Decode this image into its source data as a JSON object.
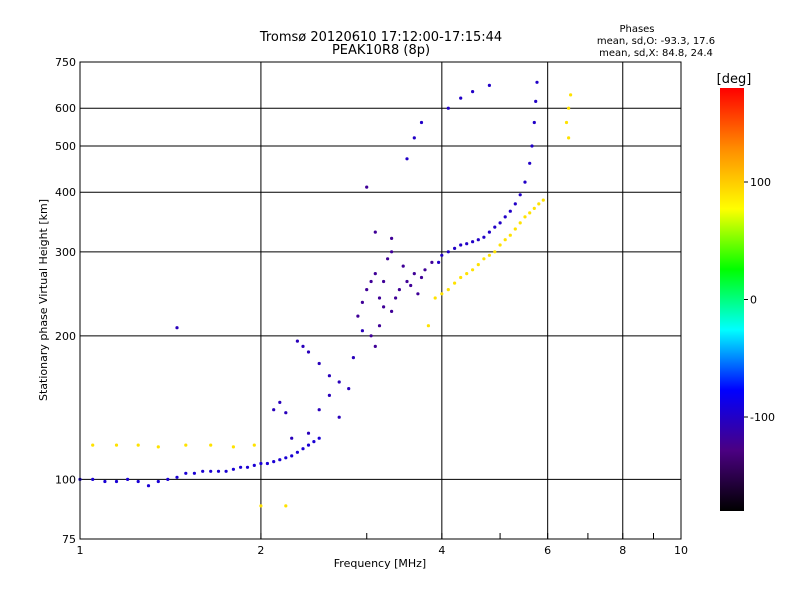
{
  "chart_data": {
    "type": "scatter",
    "title": "Tromsø 20120610 17:12:00-17:15:44",
    "subtitle": "PEAK10R8 (8p)",
    "xlabel": "Frequency [MHz]",
    "ylabel": "Stationary phase Virtual Height [km]",
    "x_scale": "log",
    "y_scale": "log",
    "xlim": [
      1,
      10
    ],
    "ylim": [
      75,
      750
    ],
    "x_ticks": [
      1,
      2,
      4,
      6,
      8,
      10
    ],
    "y_ticks": [
      75,
      100,
      200,
      300,
      400,
      500,
      600,
      750
    ],
    "grid": true,
    "phases": {
      "title": "Phases",
      "o_label": "mean, sd,O: -93.3, 17.6",
      "x_label": "mean, sd,X:  84.8, 24.4"
    },
    "colorbar": {
      "label": "[deg]",
      "min": -180,
      "max": 180,
      "ticks": [
        100,
        0,
        -100
      ],
      "colors": [
        "#000000",
        "#4b0082",
        "#0000ff",
        "#00ffff",
        "#00ff00",
        "#ffff00",
        "#ff8c00",
        "#ff0000"
      ]
    },
    "series": [
      {
        "key": "o_low",
        "phase": -95,
        "points": [
          [
            1.0,
            100
          ],
          [
            1.05,
            100
          ],
          [
            1.1,
            99
          ],
          [
            1.15,
            99
          ],
          [
            1.2,
            100
          ],
          [
            1.25,
            99
          ],
          [
            1.3,
            97
          ],
          [
            1.35,
            99
          ],
          [
            1.4,
            100
          ],
          [
            1.45,
            101
          ],
          [
            1.5,
            103
          ],
          [
            1.55,
            103
          ],
          [
            1.6,
            104
          ],
          [
            1.65,
            104
          ],
          [
            1.7,
            104
          ],
          [
            1.75,
            104
          ],
          [
            1.8,
            105
          ],
          [
            1.85,
            106
          ],
          [
            1.9,
            106
          ],
          [
            1.95,
            107
          ],
          [
            2.0,
            108
          ],
          [
            2.05,
            108
          ],
          [
            2.1,
            109
          ],
          [
            2.15,
            110
          ],
          [
            2.2,
            111
          ],
          [
            2.25,
            112
          ],
          [
            2.3,
            114
          ],
          [
            2.35,
            116
          ],
          [
            2.4,
            118
          ],
          [
            2.45,
            120
          ],
          [
            2.5,
            122
          ]
        ]
      },
      {
        "key": "o_mid",
        "phase": -105,
        "points": [
          [
            2.3,
            195
          ],
          [
            2.35,
            190
          ],
          [
            2.4,
            185
          ],
          [
            2.5,
            175
          ],
          [
            2.6,
            165
          ],
          [
            2.7,
            160
          ],
          [
            2.8,
            155
          ],
          [
            2.1,
            140
          ],
          [
            2.15,
            145
          ],
          [
            2.2,
            138
          ],
          [
            2.5,
            140
          ],
          [
            2.6,
            150
          ],
          [
            2.7,
            135
          ],
          [
            2.85,
            180
          ],
          [
            2.95,
            205
          ],
          [
            2.4,
            125
          ],
          [
            2.25,
            122
          ],
          [
            1.45,
            208
          ]
        ]
      },
      {
        "key": "o_f1",
        "phase": -120,
        "points": [
          [
            2.9,
            220
          ],
          [
            2.95,
            235
          ],
          [
            3.0,
            250
          ],
          [
            3.05,
            260
          ],
          [
            3.1,
            270
          ],
          [
            3.15,
            240
          ],
          [
            3.2,
            230
          ],
          [
            3.3,
            225
          ],
          [
            3.4,
            250
          ],
          [
            3.5,
            260
          ],
          [
            3.6,
            270
          ],
          [
            3.7,
            265
          ],
          [
            3.05,
            200
          ],
          [
            3.1,
            190
          ],
          [
            3.15,
            210
          ],
          [
            3.2,
            260
          ],
          [
            3.25,
            290
          ],
          [
            3.3,
            300
          ],
          [
            3.35,
            240
          ],
          [
            3.45,
            280
          ],
          [
            3.55,
            255
          ],
          [
            3.65,
            245
          ],
          [
            3.75,
            275
          ],
          [
            3.85,
            285
          ],
          [
            3.0,
            410
          ],
          [
            3.1,
            330
          ],
          [
            3.3,
            320
          ]
        ]
      },
      {
        "key": "o_f2",
        "phase": -100,
        "points": [
          [
            3.95,
            285
          ],
          [
            4.0,
            295
          ],
          [
            4.1,
            300
          ],
          [
            4.2,
            305
          ],
          [
            4.3,
            310
          ],
          [
            4.4,
            312
          ],
          [
            4.5,
            315
          ],
          [
            4.6,
            318
          ],
          [
            4.7,
            322
          ],
          [
            4.8,
            330
          ],
          [
            4.9,
            338
          ],
          [
            5.0,
            345
          ],
          [
            5.1,
            355
          ],
          [
            5.2,
            365
          ],
          [
            5.3,
            378
          ],
          [
            5.4,
            395
          ],
          [
            5.5,
            420
          ],
          [
            5.6,
            460
          ],
          [
            5.65,
            500
          ],
          [
            5.7,
            560
          ],
          [
            5.73,
            620
          ],
          [
            5.76,
            680
          ],
          [
            3.5,
            470
          ],
          [
            3.6,
            520
          ],
          [
            3.7,
            560
          ],
          [
            4.1,
            600
          ],
          [
            4.3,
            630
          ],
          [
            4.5,
            650
          ],
          [
            4.8,
            670
          ]
        ]
      },
      {
        "key": "x_mode",
        "phase": 90,
        "points": [
          [
            3.9,
            240
          ],
          [
            4.0,
            245
          ],
          [
            4.1,
            250
          ],
          [
            4.2,
            258
          ],
          [
            4.3,
            265
          ],
          [
            4.4,
            270
          ],
          [
            4.5,
            275
          ],
          [
            4.6,
            282
          ],
          [
            4.7,
            290
          ],
          [
            4.8,
            295
          ],
          [
            4.9,
            300
          ],
          [
            5.0,
            310
          ],
          [
            5.1,
            318
          ],
          [
            5.2,
            325
          ],
          [
            5.3,
            335
          ],
          [
            5.4,
            345
          ],
          [
            5.5,
            355
          ],
          [
            5.6,
            362
          ],
          [
            5.7,
            370
          ],
          [
            5.8,
            378
          ],
          [
            5.9,
            385
          ],
          [
            6.5,
            600
          ],
          [
            6.55,
            640
          ],
          [
            6.45,
            560
          ],
          [
            6.5,
            520
          ],
          [
            3.8,
            210
          ],
          [
            1.05,
            118
          ],
          [
            1.15,
            118
          ],
          [
            1.25,
            118
          ],
          [
            1.35,
            117
          ],
          [
            1.5,
            118
          ],
          [
            1.65,
            118
          ],
          [
            1.8,
            117
          ],
          [
            1.95,
            118
          ],
          [
            2.0,
            88
          ],
          [
            2.2,
            88
          ]
        ]
      }
    ]
  }
}
